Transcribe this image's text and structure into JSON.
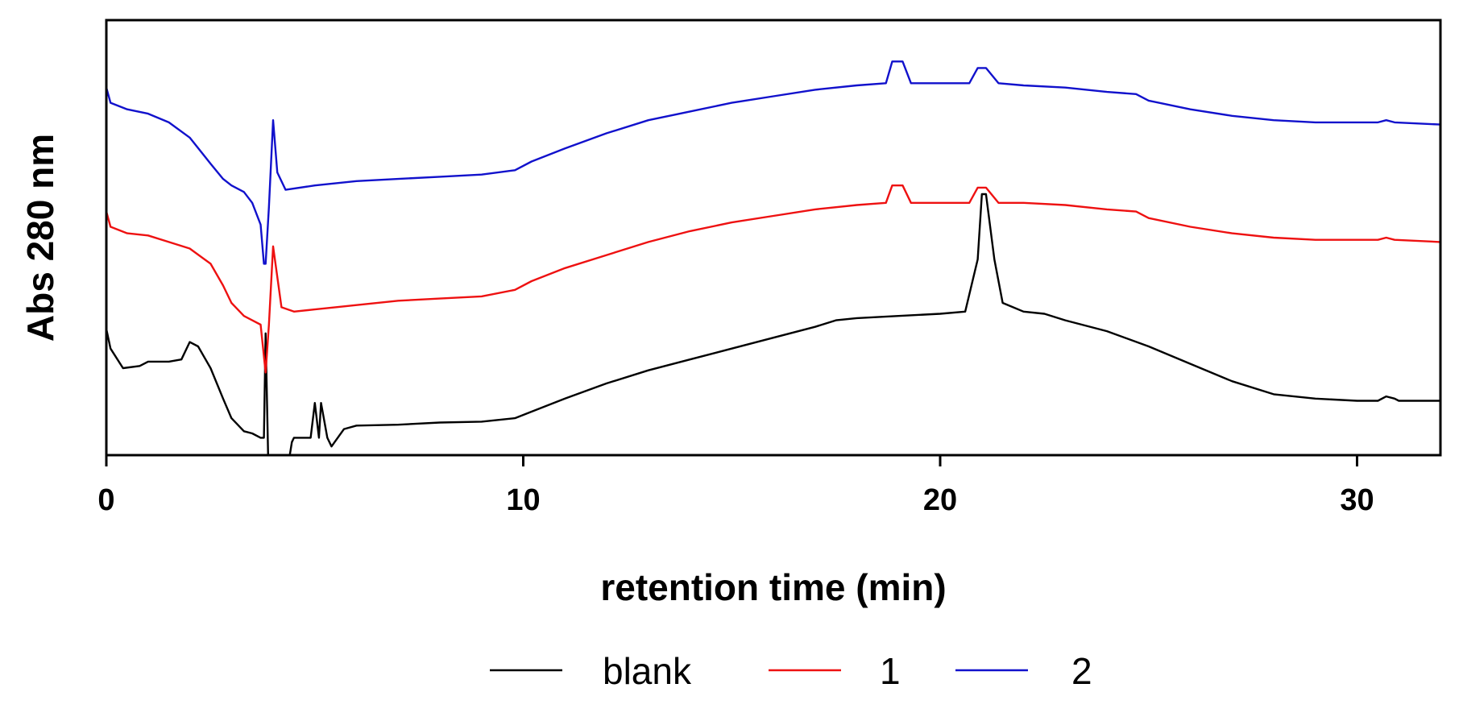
{
  "chart_data": {
    "type": "line",
    "title": "",
    "xlabel": "retention time (min)",
    "ylabel": "Abs 280 nm",
    "xlim": [
      0,
      32
    ],
    "ylim": [
      0,
      1
    ],
    "x_ticks": [
      0,
      10,
      20,
      30
    ],
    "x_tick_labels": [
      "0",
      "10",
      "20",
      "30"
    ],
    "y_ticks_shown": false,
    "grid": false,
    "legend_position": "bottom-center",
    "series": [
      {
        "name": "blank",
        "color": "#000000",
        "points": [
          [
            0,
            0.29
          ],
          [
            0.1,
            0.245
          ],
          [
            0.4,
            0.2
          ],
          [
            0.8,
            0.205
          ],
          [
            1.0,
            0.215
          ],
          [
            1.5,
            0.215
          ],
          [
            1.8,
            0.22
          ],
          [
            2.0,
            0.26
          ],
          [
            2.2,
            0.25
          ],
          [
            2.5,
            0.2
          ],
          [
            2.8,
            0.13
          ],
          [
            3.0,
            0.085
          ],
          [
            3.3,
            0.055
          ],
          [
            3.5,
            0.05
          ],
          [
            3.7,
            0.04
          ],
          [
            3.78,
            0.04
          ],
          [
            3.82,
            0.28
          ],
          [
            3.88,
            0.0
          ],
          [
            4.3,
            0.0
          ],
          [
            4.4,
            0.0
          ],
          [
            4.45,
            0.03
          ],
          [
            4.5,
            0.04
          ],
          [
            4.9,
            0.04
          ],
          [
            5.0,
            0.12
          ],
          [
            5.1,
            0.04
          ],
          [
            5.15,
            0.12
          ],
          [
            5.3,
            0.04
          ],
          [
            5.4,
            0.02
          ],
          [
            5.7,
            0.06
          ],
          [
            6.0,
            0.068
          ],
          [
            7,
            0.07
          ],
          [
            8,
            0.075
          ],
          [
            9,
            0.077
          ],
          [
            9.8,
            0.085
          ],
          [
            10.2,
            0.1
          ],
          [
            11,
            0.13
          ],
          [
            12,
            0.165
          ],
          [
            13,
            0.195
          ],
          [
            14,
            0.22
          ],
          [
            15,
            0.245
          ],
          [
            16,
            0.27
          ],
          [
            17,
            0.295
          ],
          [
            17.5,
            0.31
          ],
          [
            18,
            0.315
          ],
          [
            19,
            0.32
          ],
          [
            20,
            0.325
          ],
          [
            20.6,
            0.33
          ],
          [
            20.9,
            0.45
          ],
          [
            21.0,
            0.6
          ],
          [
            21.1,
            0.6
          ],
          [
            21.3,
            0.45
          ],
          [
            21.5,
            0.35
          ],
          [
            22,
            0.33
          ],
          [
            22.5,
            0.325
          ],
          [
            23,
            0.31
          ],
          [
            24,
            0.285
          ],
          [
            25,
            0.25
          ],
          [
            26,
            0.21
          ],
          [
            27,
            0.17
          ],
          [
            28,
            0.14
          ],
          [
            29,
            0.13
          ],
          [
            30,
            0.125
          ],
          [
            30.5,
            0.125
          ],
          [
            30.7,
            0.135
          ],
          [
            30.9,
            0.13
          ],
          [
            31.0,
            0.125
          ],
          [
            32,
            0.125
          ]
        ]
      },
      {
        "name": "1",
        "color": "#ee1111",
        "points": [
          [
            0,
            0.56
          ],
          [
            0.1,
            0.525
          ],
          [
            0.5,
            0.51
          ],
          [
            1,
            0.505
          ],
          [
            1.5,
            0.49
          ],
          [
            2,
            0.475
          ],
          [
            2.5,
            0.44
          ],
          [
            2.8,
            0.39
          ],
          [
            3.0,
            0.35
          ],
          [
            3.3,
            0.32
          ],
          [
            3.5,
            0.31
          ],
          [
            3.7,
            0.3
          ],
          [
            3.82,
            0.19
          ],
          [
            3.9,
            0.3
          ],
          [
            4.0,
            0.48
          ],
          [
            4.2,
            0.34
          ],
          [
            4.5,
            0.33
          ],
          [
            5,
            0.335
          ],
          [
            6,
            0.345
          ],
          [
            7,
            0.355
          ],
          [
            8,
            0.36
          ],
          [
            9,
            0.365
          ],
          [
            9.8,
            0.38
          ],
          [
            10.2,
            0.4
          ],
          [
            11,
            0.43
          ],
          [
            12,
            0.46
          ],
          [
            13,
            0.49
          ],
          [
            14,
            0.515
          ],
          [
            15,
            0.535
          ],
          [
            16,
            0.55
          ],
          [
            17,
            0.565
          ],
          [
            18,
            0.575
          ],
          [
            18.7,
            0.58
          ],
          [
            18.85,
            0.62
          ],
          [
            19.1,
            0.62
          ],
          [
            19.3,
            0.58
          ],
          [
            20,
            0.58
          ],
          [
            20.7,
            0.58
          ],
          [
            20.9,
            0.615
          ],
          [
            21.1,
            0.615
          ],
          [
            21.4,
            0.58
          ],
          [
            22,
            0.58
          ],
          [
            23,
            0.575
          ],
          [
            24,
            0.565
          ],
          [
            24.7,
            0.56
          ],
          [
            25,
            0.545
          ],
          [
            26,
            0.525
          ],
          [
            27,
            0.51
          ],
          [
            28,
            0.5
          ],
          [
            29,
            0.495
          ],
          [
            30,
            0.495
          ],
          [
            30.5,
            0.495
          ],
          [
            30.7,
            0.5
          ],
          [
            30.9,
            0.495
          ],
          [
            32,
            0.49
          ]
        ]
      },
      {
        "name": "2",
        "color": "#1111cc",
        "points": [
          [
            0,
            0.845
          ],
          [
            0.1,
            0.81
          ],
          [
            0.5,
            0.795
          ],
          [
            1,
            0.785
          ],
          [
            1.5,
            0.765
          ],
          [
            2,
            0.73
          ],
          [
            2.5,
            0.67
          ],
          [
            2.8,
            0.635
          ],
          [
            3.0,
            0.62
          ],
          [
            3.3,
            0.605
          ],
          [
            3.5,
            0.58
          ],
          [
            3.7,
            0.53
          ],
          [
            3.78,
            0.44
          ],
          [
            3.82,
            0.44
          ],
          [
            3.9,
            0.57
          ],
          [
            4.0,
            0.77
          ],
          [
            4.1,
            0.65
          ],
          [
            4.3,
            0.61
          ],
          [
            5,
            0.62
          ],
          [
            6,
            0.63
          ],
          [
            7,
            0.635
          ],
          [
            8,
            0.64
          ],
          [
            9,
            0.645
          ],
          [
            9.8,
            0.655
          ],
          [
            10.2,
            0.675
          ],
          [
            11,
            0.705
          ],
          [
            12,
            0.74
          ],
          [
            13,
            0.77
          ],
          [
            14,
            0.79
          ],
          [
            15,
            0.81
          ],
          [
            16,
            0.825
          ],
          [
            17,
            0.84
          ],
          [
            18,
            0.85
          ],
          [
            18.7,
            0.855
          ],
          [
            18.85,
            0.905
          ],
          [
            19.1,
            0.905
          ],
          [
            19.3,
            0.855
          ],
          [
            20,
            0.855
          ],
          [
            20.7,
            0.855
          ],
          [
            20.9,
            0.89
          ],
          [
            21.1,
            0.89
          ],
          [
            21.4,
            0.855
          ],
          [
            22,
            0.85
          ],
          [
            23,
            0.845
          ],
          [
            24,
            0.835
          ],
          [
            24.7,
            0.83
          ],
          [
            25,
            0.815
          ],
          [
            26,
            0.795
          ],
          [
            27,
            0.78
          ],
          [
            28,
            0.77
          ],
          [
            29,
            0.765
          ],
          [
            30,
            0.765
          ],
          [
            30.5,
            0.765
          ],
          [
            30.7,
            0.77
          ],
          [
            30.9,
            0.765
          ],
          [
            32,
            0.76
          ]
        ]
      }
    ]
  }
}
